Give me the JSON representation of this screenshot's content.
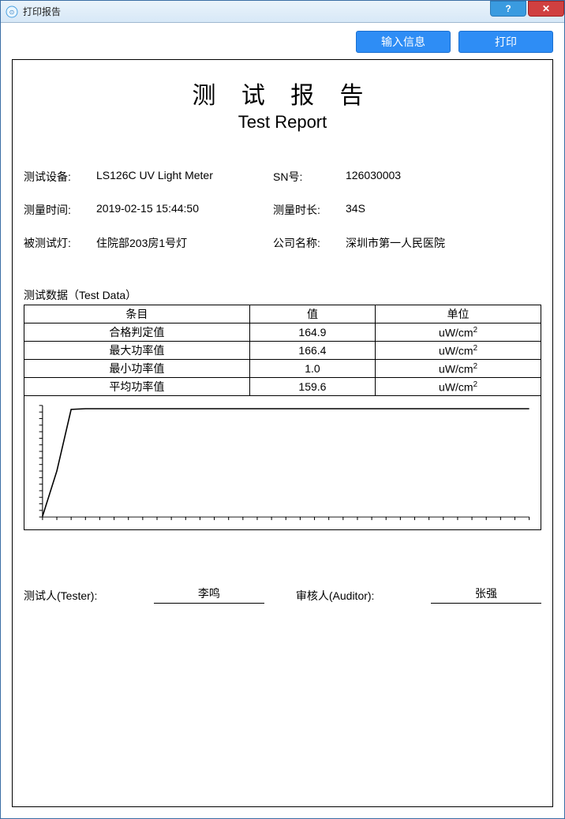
{
  "window": {
    "title": "打印报告",
    "help_glyph": "?",
    "close_glyph": "✕"
  },
  "toolbar": {
    "input_info_label": "输入信息",
    "print_label": "打印"
  },
  "report": {
    "title_cn": "测 试 报 告",
    "title_en": "Test Report",
    "info": {
      "device_label": "测试设备:",
      "device_value": "LS126C UV Light Meter",
      "sn_label": "SN号:",
      "sn_value": "126030003",
      "time_label": "测量时间:",
      "time_value": "2019-02-15 15:44:50",
      "duration_label": "测量时长:",
      "duration_value": "34S",
      "lamp_label": "被测试灯:",
      "lamp_value": "住院部203房1号灯",
      "company_label": "公司名称:",
      "company_value": "深圳市第一人民医院"
    },
    "test_data": {
      "section_label": "测试数据（Test Data）",
      "columns": [
        "条目",
        "值",
        "单位"
      ],
      "unit_html": "uW/cm²",
      "rows": [
        {
          "item": "合格判定值",
          "value": "164.9"
        },
        {
          "item": "最大功率值",
          "value": "166.4"
        },
        {
          "item": "最小功率值",
          "value": "1.0"
        },
        {
          "item": "平均功率值",
          "value": "159.6"
        }
      ]
    },
    "chart": {
      "type": "line",
      "x_range": [
        0,
        34
      ],
      "y_range": [
        0,
        170
      ],
      "axis_color": "#000000",
      "line_color": "#000000",
      "line_width": 1.5,
      "background_color": "#ffffff",
      "x_tick_step": 1,
      "y_tick_step": 10,
      "series": [
        {
          "x": 0,
          "y": 1
        },
        {
          "x": 1,
          "y": 70
        },
        {
          "x": 2,
          "y": 164
        },
        {
          "x": 3,
          "y": 165
        },
        {
          "x": 4,
          "y": 165
        },
        {
          "x": 6,
          "y": 165
        },
        {
          "x": 10,
          "y": 165
        },
        {
          "x": 15,
          "y": 165
        },
        {
          "x": 20,
          "y": 165
        },
        {
          "x": 25,
          "y": 165
        },
        {
          "x": 30,
          "y": 165
        },
        {
          "x": 34,
          "y": 165
        }
      ]
    },
    "signatures": {
      "tester_label": "测试人(Tester):",
      "tester_value": "李鸣",
      "auditor_label": "审核人(Auditor):",
      "auditor_value": "张强"
    }
  },
  "colors": {
    "button_bg": "#2e8df5",
    "button_border": "#1a6fd0",
    "titlebar_top": "#eaf3fb",
    "titlebar_bottom": "#d7e8f7",
    "close_bg": "#d04040",
    "help_bg": "#3a9be0"
  }
}
